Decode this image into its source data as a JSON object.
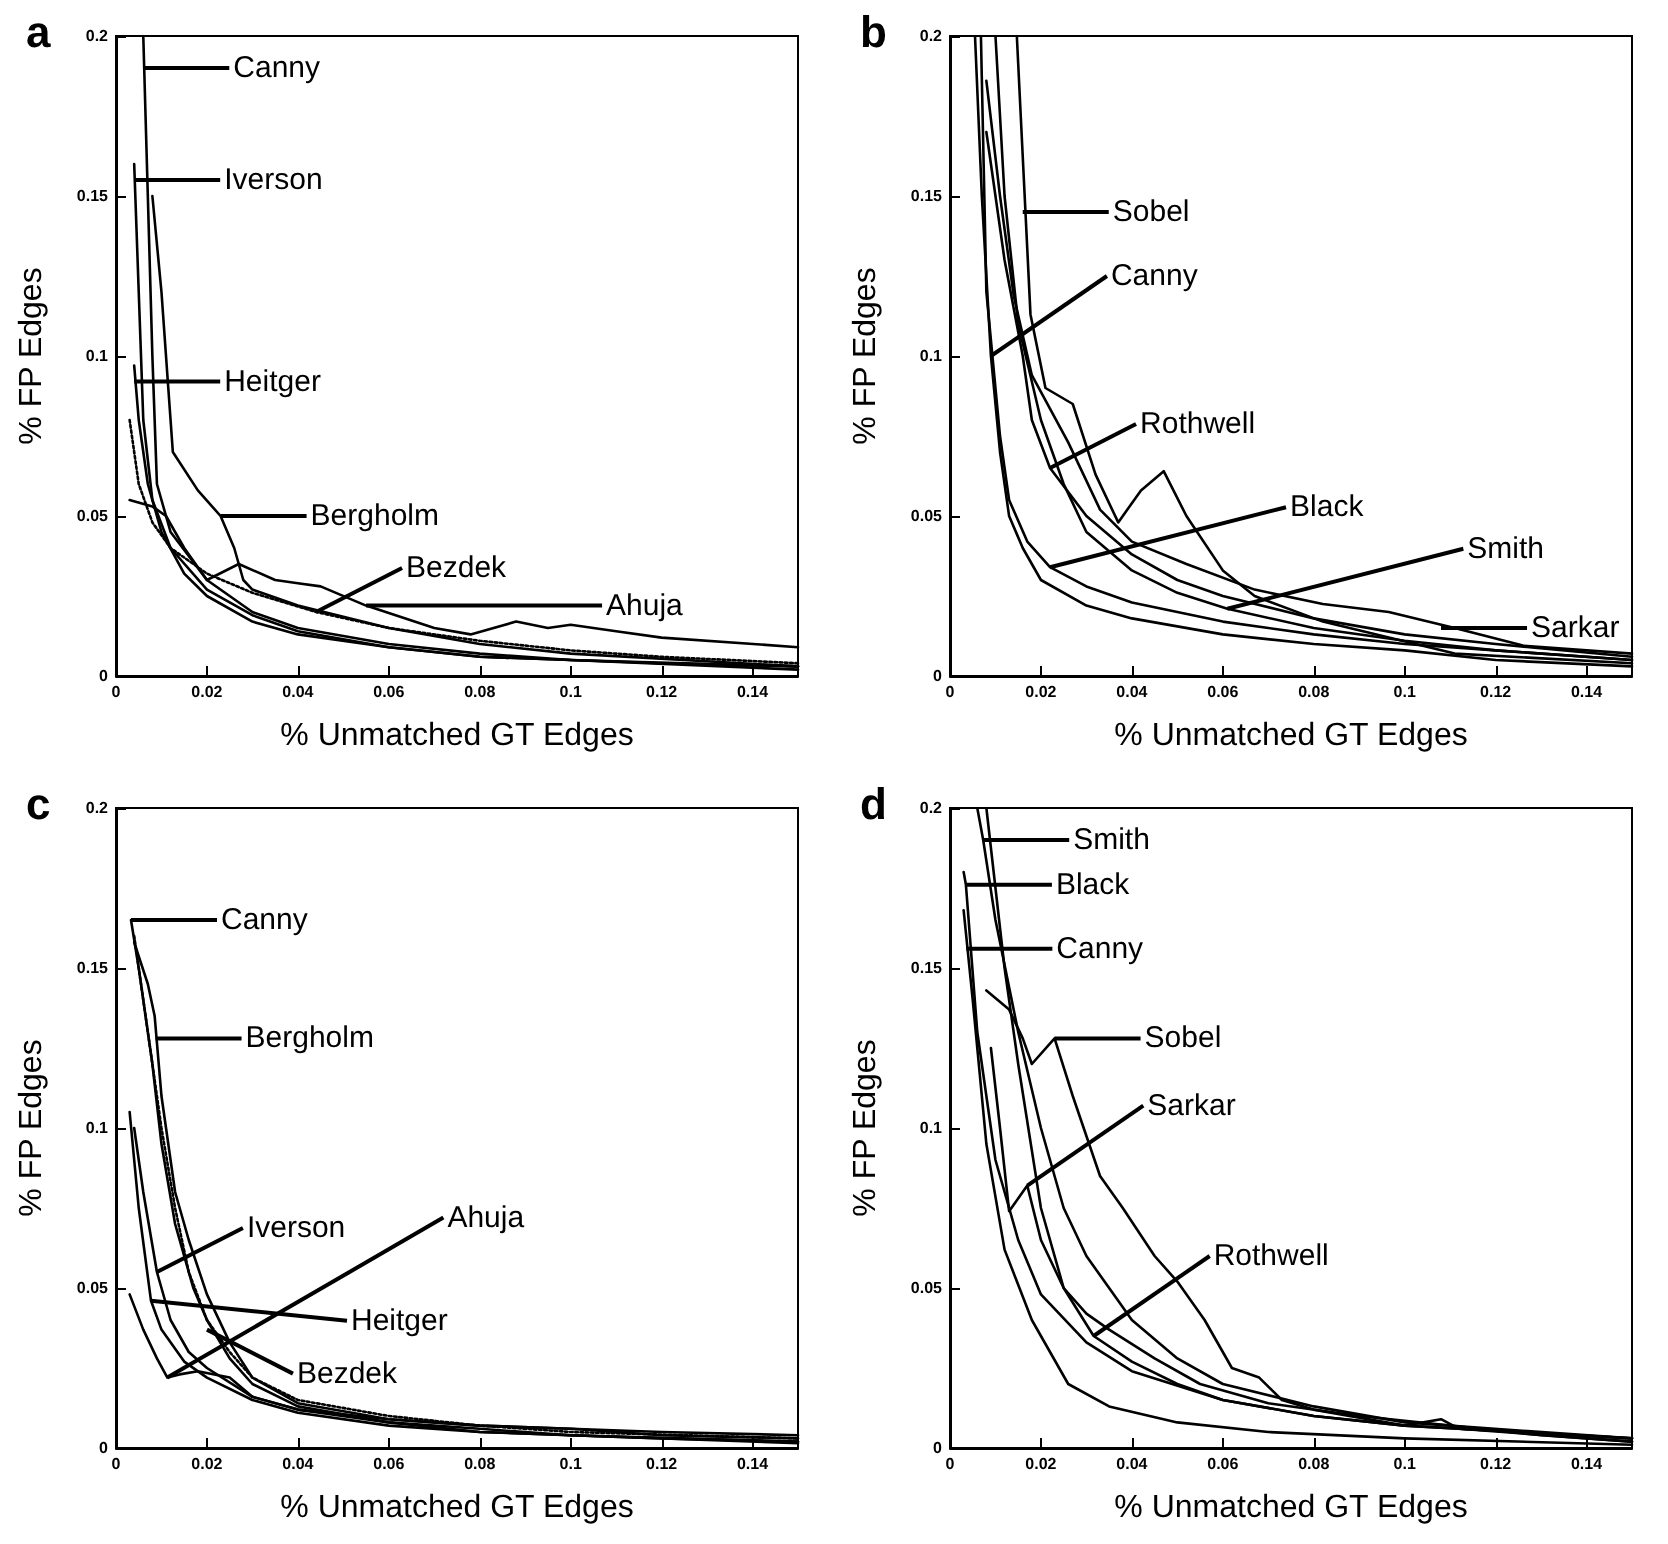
{
  "chart_data": [
    {
      "type": "line",
      "title": "a",
      "xlabel": "% Unmatched GT Edges",
      "ylabel": "% FP Edges",
      "xlim": [
        0,
        0.15
      ],
      "ylim": [
        0,
        0.2
      ],
      "xticks": [
        0,
        0.02,
        0.04,
        0.06,
        0.08,
        0.1,
        0.12,
        0.14
      ],
      "yticks": [
        0,
        0.05,
        0.1,
        0.15,
        0.2
      ],
      "grid": false,
      "marker": "none",
      "series": [
        {
          "color": "#000000",
          "x": [
            0.006,
            0.007,
            0.008,
            0.009,
            0.012,
            0.02,
            0.03,
            0.04,
            0.06,
            0.08,
            0.1,
            0.12,
            0.15
          ],
          "values": [
            0.2,
            0.15,
            0.1,
            0.06,
            0.045,
            0.03,
            0.02,
            0.015,
            0.01,
            0.007,
            0.005,
            0.004,
            0.003
          ]
        },
        {
          "color": "#000000",
          "x": [
            0.004,
            0.005,
            0.006,
            0.008,
            0.012,
            0.02,
            0.03,
            0.04,
            0.06,
            0.08,
            0.1,
            0.15
          ],
          "values": [
            0.16,
            0.12,
            0.08,
            0.055,
            0.04,
            0.027,
            0.019,
            0.014,
            0.009,
            0.006,
            0.005,
            0.002
          ]
        },
        {
          "color": "#000000",
          "x": [
            0.004,
            0.005,
            0.007,
            0.01,
            0.015,
            0.02,
            0.03,
            0.04,
            0.06,
            0.08,
            0.1,
            0.15
          ],
          "values": [
            0.097,
            0.08,
            0.06,
            0.045,
            0.032,
            0.025,
            0.017,
            0.013,
            0.009,
            0.006,
            0.005,
            0.003
          ]
        },
        {
          "color": "#000000",
          "x": [
            0.008,
            0.01,
            0.0115,
            0.0125,
            0.018,
            0.023,
            0.026,
            0.028,
            0.03,
            0.04,
            0.06,
            0.08,
            0.1,
            0.15
          ],
          "values": [
            0.15,
            0.12,
            0.09,
            0.07,
            0.058,
            0.05,
            0.04,
            0.03,
            0.027,
            0.022,
            0.015,
            0.01,
            0.007,
            0.003
          ]
        },
        {
          "color": "#000000",
          "line_style": "dotted",
          "x": [
            0.003,
            0.005,
            0.008,
            0.012,
            0.02,
            0.03,
            0.044,
            0.06,
            0.08,
            0.1,
            0.12,
            0.15
          ],
          "values": [
            0.08,
            0.06,
            0.048,
            0.04,
            0.032,
            0.026,
            0.02,
            0.015,
            0.011,
            0.008,
            0.006,
            0.004
          ]
        },
        {
          "color": "#000000",
          "x": [
            0.003,
            0.008,
            0.011,
            0.015,
            0.02,
            0.027,
            0.035,
            0.04,
            0.045,
            0.055,
            0.07,
            0.078,
            0.088,
            0.095,
            0.1,
            0.11,
            0.12,
            0.15
          ],
          "values": [
            0.055,
            0.053,
            0.05,
            0.04,
            0.03,
            0.035,
            0.03,
            0.029,
            0.028,
            0.022,
            0.015,
            0.013,
            0.017,
            0.015,
            0.016,
            0.014,
            0.012,
            0.009
          ]
        }
      ],
      "annotations": [
        {
          "text": "Canny",
          "x": 0.006,
          "y": 0.19
        },
        {
          "text": "Iverson",
          "x": 0.004,
          "y": 0.155
        },
        {
          "text": "Heitger",
          "x": 0.004,
          "y": 0.092
        },
        {
          "text": "Bergholm",
          "x": 0.023,
          "y": 0.05
        },
        {
          "text": "Bezdek",
          "x": 0.044,
          "y": 0.02
        },
        {
          "text": "Ahuja",
          "x": 0.055,
          "y": 0.022
        }
      ]
    },
    {
      "type": "line",
      "title": "b",
      "xlabel": "% Unmatched GT Edges",
      "ylabel": "% FP Edges",
      "xlim": [
        0,
        0.15
      ],
      "ylim": [
        0,
        0.2
      ],
      "xticks": [
        0,
        0.02,
        0.04,
        0.06,
        0.08,
        0.1,
        0.12,
        0.14
      ],
      "yticks": [
        0,
        0.05,
        0.1,
        0.15,
        0.2
      ],
      "grid": false,
      "marker": "none",
      "series": [
        {
          "color": "#000000",
          "x": [
            0.0147,
            0.0177,
            0.021,
            0.027,
            0.032,
            0.037,
            0.042,
            0.047,
            0.052,
            0.06,
            0.067,
            0.082,
            0.111,
            0.15
          ],
          "values": [
            0.2,
            0.113,
            0.09,
            0.085,
            0.063,
            0.048,
            0.058,
            0.064,
            0.05,
            0.033,
            0.025,
            0.017,
            0.007,
            0.004
          ]
        },
        {
          "color": "#000000",
          "x": [
            0.0055,
            0.007,
            0.009,
            0.011,
            0.013,
            0.016,
            0.02,
            0.03,
            0.04,
            0.06,
            0.08,
            0.1,
            0.12,
            0.15
          ],
          "values": [
            0.2,
            0.15,
            0.1,
            0.07,
            0.05,
            0.04,
            0.03,
            0.022,
            0.018,
            0.013,
            0.01,
            0.008,
            0.005,
            0.003
          ]
        },
        {
          "color": "#000000",
          "x": [
            0.008,
            0.012,
            0.016,
            0.018,
            0.022,
            0.03,
            0.04,
            0.05,
            0.06,
            0.08,
            0.1,
            0.12,
            0.15
          ],
          "values": [
            0.17,
            0.13,
            0.1,
            0.08,
            0.065,
            0.05,
            0.038,
            0.03,
            0.025,
            0.018,
            0.013,
            0.01,
            0.006
          ]
        },
        {
          "color": "#000000",
          "x": [
            0.0068,
            0.008,
            0.011,
            0.013,
            0.017,
            0.022,
            0.03,
            0.04,
            0.06,
            0.08,
            0.1,
            0.12,
            0.15
          ],
          "values": [
            0.2,
            0.12,
            0.075,
            0.055,
            0.042,
            0.034,
            0.028,
            0.023,
            0.017,
            0.013,
            0.01,
            0.008,
            0.005
          ]
        },
        {
          "color": "#000000",
          "x": [
            0.01,
            0.012,
            0.015,
            0.02,
            0.025,
            0.03,
            0.04,
            0.05,
            0.061,
            0.08,
            0.1,
            0.12,
            0.15
          ],
          "values": [
            0.2,
            0.15,
            0.11,
            0.08,
            0.06,
            0.045,
            0.033,
            0.026,
            0.021,
            0.015,
            0.011,
            0.008,
            0.005
          ]
        },
        {
          "color": "#000000",
          "x": [
            0.008,
            0.011,
            0.014,
            0.018,
            0.026,
            0.033,
            0.04,
            0.052,
            0.067,
            0.082,
            0.0965,
            0.111,
            0.126,
            0.15
          ],
          "values": [
            0.186,
            0.15,
            0.119,
            0.094,
            0.073,
            0.052,
            0.042,
            0.035,
            0.027,
            0.0225,
            0.02,
            0.015,
            0.0095,
            0.007
          ]
        }
      ],
      "annotations": [
        {
          "text": "Sobel",
          "x": 0.016,
          "y": 0.145
        },
        {
          "text": "Canny",
          "x": 0.009,
          "y": 0.1
        },
        {
          "text": "Rothwell",
          "x": 0.022,
          "y": 0.065
        },
        {
          "text": "Black",
          "x": 0.022,
          "y": 0.034
        },
        {
          "text": "Smith",
          "x": 0.061,
          "y": 0.021
        },
        {
          "text": "Sarkar",
          "x": 0.108,
          "y": 0.015
        }
      ]
    },
    {
      "type": "line",
      "title": "c",
      "xlabel": "% Unmatched GT Edges",
      "ylabel": "% FP Edges",
      "xlim": [
        0,
        0.15
      ],
      "ylim": [
        0,
        0.2
      ],
      "xticks": [
        0,
        0.02,
        0.04,
        0.06,
        0.08,
        0.1,
        0.12,
        0.14
      ],
      "yticks": [
        0,
        0.05,
        0.1,
        0.15,
        0.2
      ],
      "grid": false,
      "marker": "none",
      "series": [
        {
          "color": "#000000",
          "x": [
            0.0033,
            0.005,
            0.008,
            0.01,
            0.013,
            0.017,
            0.02,
            0.025,
            0.03,
            0.04,
            0.06,
            0.08,
            0.1,
            0.12,
            0.15
          ],
          "values": [
            0.165,
            0.15,
            0.12,
            0.095,
            0.07,
            0.05,
            0.04,
            0.028,
            0.02,
            0.013,
            0.008,
            0.006,
            0.004,
            0.003,
            0.002
          ]
        },
        {
          "color": "#000000",
          "x": [
            0.004,
            0.007,
            0.0085,
            0.01,
            0.013,
            0.016,
            0.02,
            0.025,
            0.03,
            0.04,
            0.06,
            0.08,
            0.1,
            0.12,
            0.15
          ],
          "values": [
            0.158,
            0.145,
            0.135,
            0.11,
            0.08,
            0.065,
            0.048,
            0.033,
            0.022,
            0.014,
            0.009,
            0.007,
            0.006,
            0.004,
            0.003
          ]
        },
        {
          "color": "#000000",
          "x": [
            0.004,
            0.006,
            0.009,
            0.012,
            0.016,
            0.02,
            0.03,
            0.04,
            0.06,
            0.08,
            0.1,
            0.15
          ],
          "values": [
            0.1,
            0.08,
            0.055,
            0.04,
            0.03,
            0.025,
            0.016,
            0.012,
            0.008,
            0.005,
            0.004,
            0.0015
          ]
        },
        {
          "color": "#000000",
          "x": [
            0.003,
            0.005,
            0.0077,
            0.01,
            0.015,
            0.02,
            0.03,
            0.04,
            0.06,
            0.08,
            0.1,
            0.15
          ],
          "values": [
            0.105,
            0.075,
            0.046,
            0.037,
            0.027,
            0.022,
            0.015,
            0.011,
            0.007,
            0.005,
            0.004,
            0.002
          ]
        },
        {
          "color": "#000000",
          "line_style": "dotted",
          "x": [
            0.004,
            0.007,
            0.01,
            0.013,
            0.016,
            0.02,
            0.025,
            0.03,
            0.04,
            0.06,
            0.08,
            0.1,
            0.15
          ],
          "values": [
            0.16,
            0.13,
            0.1,
            0.075,
            0.055,
            0.04,
            0.03,
            0.022,
            0.015,
            0.01,
            0.007,
            0.005,
            0.003
          ]
        },
        {
          "color": "#000000",
          "x": [
            0.003,
            0.006,
            0.009,
            0.0113,
            0.014,
            0.018,
            0.025,
            0.03,
            0.04,
            0.06,
            0.08,
            0.1,
            0.12,
            0.15
          ],
          "values": [
            0.048,
            0.037,
            0.028,
            0.022,
            0.023,
            0.024,
            0.022,
            0.016,
            0.012,
            0.009,
            0.007,
            0.006,
            0.005,
            0.004
          ]
        }
      ],
      "annotations": [
        {
          "text": "Canny",
          "x": 0.0033,
          "y": 0.165
        },
        {
          "text": "Bergholm",
          "x": 0.0087,
          "y": 0.128
        },
        {
          "text": "Iverson",
          "x": 0.009,
          "y": 0.055
        },
        {
          "text": "Heitger",
          "x": 0.0077,
          "y": 0.046
        },
        {
          "text": "Bezdek",
          "x": 0.02,
          "y": 0.037
        },
        {
          "text": "Ahuja",
          "x": 0.0113,
          "y": 0.022
        }
      ]
    },
    {
      "type": "line",
      "title": "d",
      "xlabel": "% Unmatched GT Edges",
      "ylabel": "% FP Edges",
      "xlim": [
        0,
        0.15
      ],
      "ylim": [
        0,
        0.2
      ],
      "xticks": [
        0,
        0.02,
        0.04,
        0.06,
        0.08,
        0.1,
        0.12,
        0.14
      ],
      "yticks": [
        0,
        0.05,
        0.1,
        0.15,
        0.2
      ],
      "grid": false,
      "marker": "none",
      "series": [
        {
          "color": "#000000",
          "x": [
            0.006,
            0.0073,
            0.01,
            0.015,
            0.02,
            0.025,
            0.03,
            0.035,
            0.04,
            0.05,
            0.06,
            0.08,
            0.1,
            0.15
          ],
          "values": [
            0.2,
            0.19,
            0.165,
            0.13,
            0.1,
            0.075,
            0.06,
            0.05,
            0.04,
            0.028,
            0.02,
            0.013,
            0.008,
            0.003
          ]
        },
        {
          "color": "#000000",
          "x": [
            0.003,
            0.0035,
            0.006,
            0.01,
            0.015,
            0.02,
            0.03,
            0.04,
            0.06,
            0.08,
            0.1,
            0.15
          ],
          "values": [
            0.18,
            0.176,
            0.13,
            0.09,
            0.065,
            0.048,
            0.033,
            0.024,
            0.015,
            0.01,
            0.007,
            0.003
          ]
        },
        {
          "color": "#000000",
          "x": [
            0.003,
            0.005,
            0.008,
            0.012,
            0.018,
            0.026,
            0.035,
            0.05,
            0.07,
            0.1,
            0.15
          ],
          "values": [
            0.168,
            0.14,
            0.095,
            0.062,
            0.04,
            0.02,
            0.013,
            0.008,
            0.005,
            0.003,
            0.001
          ]
        },
        {
          "color": "#000000",
          "x": [
            0.008,
            0.013,
            0.016,
            0.018,
            0.023,
            0.027,
            0.033,
            0.038,
            0.045,
            0.05,
            0.056,
            0.062,
            0.068,
            0.073,
            0.08,
            0.1,
            0.108,
            0.112,
            0.15
          ],
          "values": [
            0.143,
            0.137,
            0.128,
            0.12,
            0.128,
            0.11,
            0.085,
            0.075,
            0.06,
            0.052,
            0.04,
            0.025,
            0.022,
            0.015,
            0.012,
            0.007,
            0.009,
            0.006,
            0.002
          ]
        },
        {
          "color": "#000000",
          "x": [
            0.009,
            0.011,
            0.013,
            0.017,
            0.02,
            0.025,
            0.03,
            0.035,
            0.045,
            0.055,
            0.07,
            0.09,
            0.11,
            0.13,
            0.15
          ],
          "values": [
            0.125,
            0.1,
            0.074,
            0.082,
            0.065,
            0.05,
            0.042,
            0.037,
            0.028,
            0.02,
            0.014,
            0.01,
            0.007,
            0.004,
            0.002
          ]
        },
        {
          "color": "#000000",
          "x": [
            0.008,
            0.012,
            0.015,
            0.02,
            0.025,
            0.0316,
            0.04,
            0.05,
            0.06,
            0.08,
            0.1,
            0.15
          ],
          "values": [
            0.2,
            0.15,
            0.12,
            0.075,
            0.05,
            0.035,
            0.027,
            0.02,
            0.015,
            0.01,
            0.007,
            0.003
          ]
        }
      ],
      "annotations": [
        {
          "text": "Smith",
          "x": 0.0073,
          "y": 0.19
        },
        {
          "text": "Black",
          "x": 0.0035,
          "y": 0.176
        },
        {
          "text": "Canny",
          "x": 0.0036,
          "y": 0.156
        },
        {
          "text": "Sobel",
          "x": 0.023,
          "y": 0.128
        },
        {
          "text": "Sarkar",
          "x": 0.017,
          "y": 0.082
        },
        {
          "text": "Rothwell",
          "x": 0.0316,
          "y": 0.035
        }
      ]
    }
  ]
}
